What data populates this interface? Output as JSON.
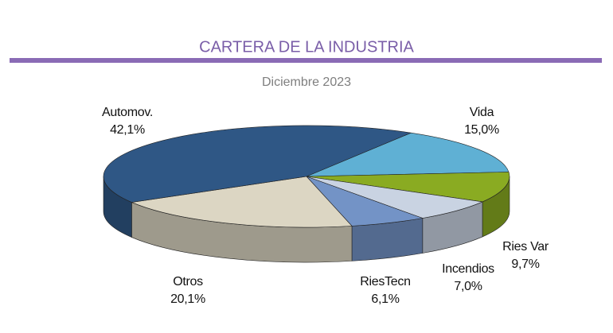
{
  "chart_data": {
    "type": "pie3d",
    "title": "CARTERA DE LA INDUSTRIA",
    "subtitle": "Diciembre 2023",
    "categories": [
      "Vida",
      "Ries Var",
      "Incendios",
      "RiesTecn",
      "Otros",
      "Automov."
    ],
    "values": [
      15.0,
      9.7,
      7.0,
      6.1,
      20.1,
      42.1
    ],
    "value_labels": [
      "15,0%",
      "9,7%",
      "7,0%",
      "6,1%",
      "20,1%",
      "42,1%"
    ],
    "colors": [
      "#5fb0d4",
      "#8aab22",
      "#c9d3e2",
      "#7393c6",
      "#dcd6c3",
      "#2f5785"
    ]
  }
}
